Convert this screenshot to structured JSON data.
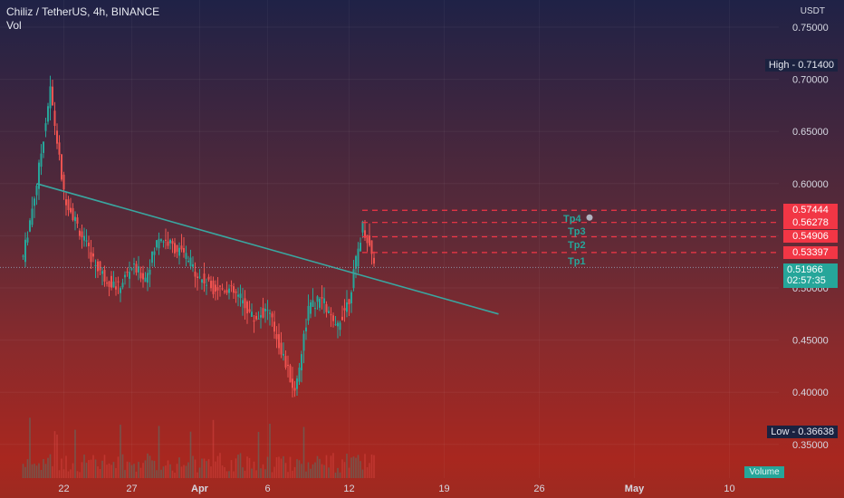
{
  "header": {
    "symbol_line": "Chiliz / TetherUS, 4h, BINANCE",
    "vol_label": "Vol"
  },
  "price_axis": {
    "currency": "USDT",
    "ticks": [
      "0.75000",
      "0.70000",
      "0.65000",
      "0.60000",
      "0.55000",
      "0.50000",
      "0.45000",
      "0.40000",
      "0.35000"
    ]
  },
  "time_axis": {
    "ticks": [
      "22",
      "27",
      "Apr",
      "6",
      "12",
      "19",
      "26",
      "May",
      "10"
    ]
  },
  "markers": {
    "high_label": "High",
    "high_value": "0.71400",
    "low_label": "Low",
    "low_value": "0.36638",
    "current_price": "0.51966",
    "countdown": "02:57:35",
    "volume_label": "Volume"
  },
  "targets": [
    {
      "name": "Tp4",
      "price": "0.57444"
    },
    {
      "name": "Tp3",
      "price": "0.56278"
    },
    {
      "name": "Tp2",
      "price": "0.54906"
    },
    {
      "name": "Tp1",
      "price": "0.53397"
    }
  ],
  "colors": {
    "up": "#26a69a",
    "down": "#ef5350",
    "target_line": "#f23645",
    "trendline": "#3aa6a0"
  },
  "chart_data": {
    "type": "candlestick",
    "symbol": "Chiliz / TetherUS",
    "interval": "4h",
    "exchange": "BINANCE",
    "y_unit": "USDT",
    "ylim": [
      0.32,
      0.77
    ],
    "high": 0.714,
    "low": 0.36638,
    "last_price": 0.51966,
    "approx_close_path": [
      {
        "date": "Mar 19",
        "close": 0.53
      },
      {
        "date": "Mar 20",
        "close": 0.6
      },
      {
        "date": "Mar 21",
        "close": 0.69
      },
      {
        "date": "Mar 22",
        "close": 0.59
      },
      {
        "date": "Mar 23",
        "close": 0.56
      },
      {
        "date": "Mar 24",
        "close": 0.53
      },
      {
        "date": "Mar 25",
        "close": 0.51
      },
      {
        "date": "Mar 26",
        "close": 0.5
      },
      {
        "date": "Mar 27",
        "close": 0.52
      },
      {
        "date": "Mar 28",
        "close": 0.51
      },
      {
        "date": "Mar 29",
        "close": 0.55
      },
      {
        "date": "Mar 30",
        "close": 0.54
      },
      {
        "date": "Mar 31",
        "close": 0.53
      },
      {
        "date": "Apr 1",
        "close": 0.51
      },
      {
        "date": "Apr 2",
        "close": 0.5
      },
      {
        "date": "Apr 3",
        "close": 0.5
      },
      {
        "date": "Apr 4",
        "close": 0.49
      },
      {
        "date": "Apr 5",
        "close": 0.47
      },
      {
        "date": "Apr 6",
        "close": 0.48
      },
      {
        "date": "Apr 7",
        "close": 0.44
      },
      {
        "date": "Apr 8",
        "close": 0.4
      },
      {
        "date": "Apr 9",
        "close": 0.48
      },
      {
        "date": "Apr 10",
        "close": 0.49
      },
      {
        "date": "Apr 11",
        "close": 0.46
      },
      {
        "date": "Apr 12",
        "close": 0.49
      },
      {
        "date": "Apr 13",
        "close": 0.56
      },
      {
        "date": "Apr 14",
        "close": 0.51966
      }
    ],
    "trendline": {
      "from": {
        "date": "Mar 20",
        "price": 0.6
      },
      "to": {
        "date": "Apr 23",
        "price": 0.475
      }
    },
    "target_levels": [
      0.57444,
      0.56278,
      0.54906,
      0.53397
    ],
    "xlim": [
      "Mar 17",
      "May 12"
    ]
  }
}
